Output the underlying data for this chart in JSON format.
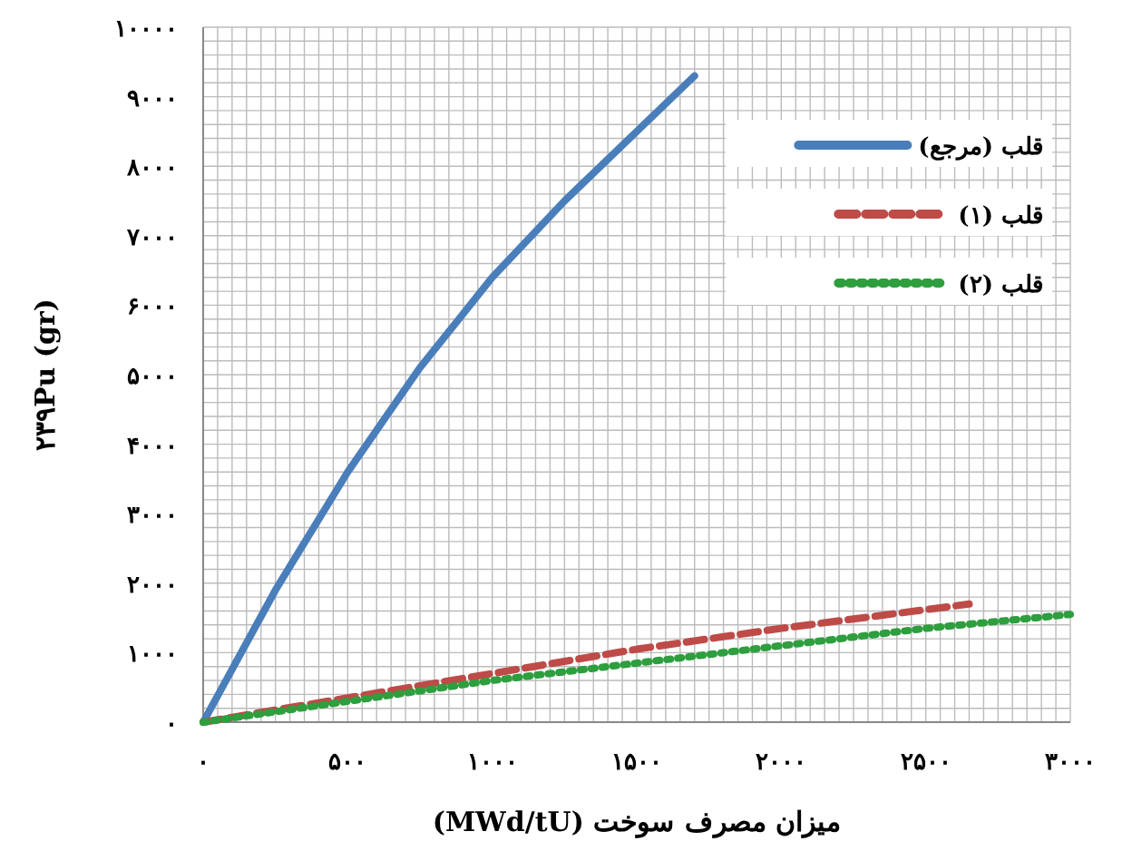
{
  "chart_data": {
    "type": "line",
    "xlabel": "میزان مصرف سوخت (MWd/tU)",
    "ylabel": "۲۳۹Pu (gr)",
    "xlim": [
      0,
      3000
    ],
    "ylim": [
      0,
      10000
    ],
    "xticks": [
      {
        "value": 0,
        "label": "۰"
      },
      {
        "value": 500,
        "label": "۵۰۰"
      },
      {
        "value": 1000,
        "label": "۱۰۰۰"
      },
      {
        "value": 1500,
        "label": "۱۵۰۰"
      },
      {
        "value": 2000,
        "label": "۲۰۰۰"
      },
      {
        "value": 2500,
        "label": "۲۵۰۰"
      },
      {
        "value": 3000,
        "label": "۳۰۰۰"
      }
    ],
    "yticks": [
      {
        "value": 0,
        "label": "۰"
      },
      {
        "value": 1000,
        "label": "۱۰۰۰"
      },
      {
        "value": 2000,
        "label": "۲۰۰۰"
      },
      {
        "value": 3000,
        "label": "۳۰۰۰"
      },
      {
        "value": 4000,
        "label": "۴۰۰۰"
      },
      {
        "value": 5000,
        "label": "۵۰۰۰"
      },
      {
        "value": 6000,
        "label": "۶۰۰۰"
      },
      {
        "value": 7000,
        "label": "۷۰۰۰"
      },
      {
        "value": 8000,
        "label": "۸۰۰۰"
      },
      {
        "value": 9000,
        "label": "۹۰۰۰"
      },
      {
        "value": 10000,
        "label": "۱۰۰۰۰"
      }
    ],
    "grid": true,
    "legend": "right",
    "marker": "none",
    "series": [
      {
        "name": "قلب (مرجع)",
        "color": "#4a7ebb",
        "line_style": "solid",
        "x": [
          0,
          250,
          500,
          750,
          1000,
          1250,
          1500,
          1700
        ],
        "values": [
          0,
          1900,
          3600,
          5100,
          6400,
          7500,
          8500,
          9300
        ]
      },
      {
        "name": "قلب (۱)",
        "color": "#be4b48",
        "line_style": "dashed",
        "x": [
          0,
          500,
          1000,
          1500,
          2000,
          2650
        ],
        "values": [
          0,
          350,
          700,
          1050,
          1350,
          1700
        ]
      },
      {
        "name": "قلب (۲)",
        "color": "#2e9e3e",
        "line_style": "dotted",
        "x": [
          0,
          500,
          1000,
          1500,
          2000,
          2500,
          3000
        ],
        "values": [
          0,
          300,
          600,
          850,
          1100,
          1350,
          1550
        ]
      }
    ]
  }
}
